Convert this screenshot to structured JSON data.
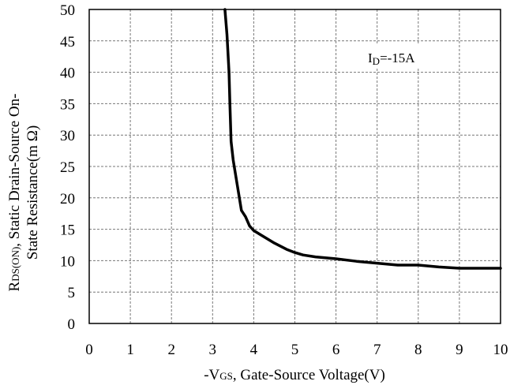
{
  "chart_data": {
    "type": "line",
    "xlabel": {
      "prefix": "-V",
      "sub": "GS",
      "rest": ", Gate-Source Voltage(V)"
    },
    "ylabel": {
      "line1_main": "R",
      "line1_sub": "DS(ON)",
      "line1_rest": ", Static Drain-Source On-",
      "line2": "State Resistance(m Ω)"
    },
    "xlim": [
      0,
      10
    ],
    "ylim": [
      0,
      50
    ],
    "xticks": [
      "0",
      "1",
      "2",
      "3",
      "4",
      "5",
      "6",
      "7",
      "8",
      "9",
      "10"
    ],
    "yticks": [
      "0",
      "5",
      "10",
      "15",
      "20",
      "25",
      "30",
      "35",
      "40",
      "45",
      "50"
    ],
    "grid": true,
    "annotation": {
      "main": "I",
      "sub": "D",
      "rest": "=-15A"
    },
    "series": [
      {
        "x": [
          3.3,
          3.35,
          3.4,
          3.42,
          3.45,
          3.5,
          3.55,
          3.6,
          3.65,
          3.7,
          3.8,
          3.9,
          4.0,
          4.2,
          4.5,
          4.8,
          5.0,
          5.2,
          5.5,
          6.0,
          6.5,
          7.0,
          7.5,
          8.0,
          8.5,
          9.0,
          9.5,
          10.0
        ],
        "y": [
          50,
          46,
          40,
          35,
          29,
          26,
          24,
          22,
          20,
          18,
          17,
          15.5,
          14.8,
          14.0,
          12.8,
          11.8,
          11.3,
          10.9,
          10.6,
          10.3,
          9.9,
          9.6,
          9.3,
          9.3,
          9.0,
          8.8,
          8.8,
          8.8
        ]
      }
    ]
  }
}
